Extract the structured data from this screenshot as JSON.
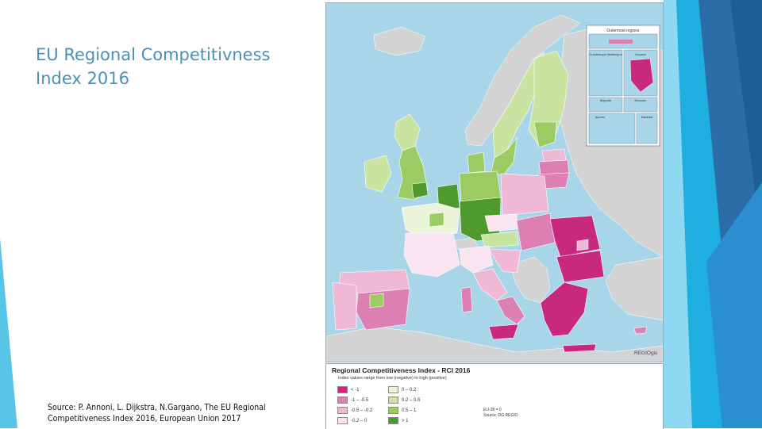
{
  "slide": {
    "title": "EU Regional Competitivness\nIndex 2016",
    "source": "Source: P. Annoni, L. Dijkstra, N.Gargano, The EU Regional\nCompetitiveness Index 2016, European Union 2017"
  },
  "map": {
    "credit": "REGIOgis",
    "insets": {
      "group_label": "Outermost regions",
      "guadeloupe_martinique": "Guadeloupe\nMartinique",
      "guyane": "Guyane",
      "mayotte": "Mayotte",
      "reunion": "Réunion",
      "acores": "Açores",
      "madeira": "Madeira"
    },
    "colors": {
      "sea": "#a8d6e8",
      "non_eu_land": "#d3d3d3",
      "strong_negative": "#c9287f",
      "negative": "#de7fb3",
      "moderate_negative": "#efb9d6",
      "slight_negative": "#f9e4ef",
      "slight_positive": "#eaf4d8",
      "moderate_positive": "#c9e3a0",
      "positive": "#9ccb63",
      "strong_positive": "#4f9a2c"
    }
  },
  "legend": {
    "title": "Regional Competitiveness Index - RCI 2016",
    "subtitle": "Index values range from low (negative) to high (positive)",
    "items": [
      {
        "label": "< -1",
        "color": "#c9287f"
      },
      {
        "label": "-1 – -0.5",
        "color": "#de7fb3"
      },
      {
        "label": "-0.5 – -0.2",
        "color": "#efb9d6"
      },
      {
        "label": "-0.2 – 0",
        "color": "#f9e4ef"
      },
      {
        "label": "0 – 0.2",
        "color": "#eaf4d8"
      },
      {
        "label": "0.2 – 0.5",
        "color": "#c9e3a0"
      },
      {
        "label": "0.5 – 1",
        "color": "#9ccb63"
      },
      {
        "label": "> 1",
        "color": "#4f9a2c"
      }
    ],
    "eu_avg": "EU-28 = 0",
    "source": "Source: DG REGIO"
  }
}
